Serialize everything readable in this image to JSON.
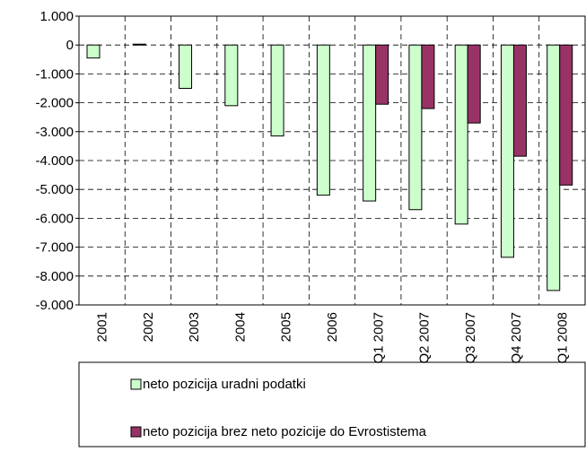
{
  "chart_data": {
    "type": "bar",
    "categories": [
      "2001",
      "2002",
      "2003",
      "2004",
      "2005",
      "2006",
      "Q1 2007",
      "Q2 2007",
      "Q3 2007",
      "Q4 2007",
      "Q1 2008"
    ],
    "series": [
      {
        "name": "neto pozicija uradni podatki",
        "color": "#ccffcc",
        "values": [
          -450,
          30,
          -1500,
          -2100,
          -3150,
          -5200,
          -5400,
          -5700,
          -6200,
          -7350,
          -8500
        ]
      },
      {
        "name": "neto pozicija brez neto pozicije do Evrostistema",
        "color": "#993366",
        "values": [
          null,
          null,
          null,
          null,
          null,
          null,
          -2050,
          -2200,
          -2700,
          -3850,
          -4850
        ]
      }
    ],
    "ylim": [
      -9000,
      1000
    ],
    "yticks": [
      {
        "value": 1000,
        "label": "1.000"
      },
      0,
      {
        "value": -1000,
        "label": "-1.000"
      },
      {
        "value": -2000,
        "label": "-2.000"
      },
      {
        "value": -3000,
        "label": "-3.000"
      },
      {
        "value": -4000,
        "label": "-4.000"
      },
      {
        "value": -5000,
        "label": "-5.000"
      },
      {
        "value": -6000,
        "label": "-6.000"
      },
      {
        "value": -7000,
        "label": "-7.000"
      },
      {
        "value": -8000,
        "label": "-8.000"
      },
      {
        "value": -9000,
        "label": "-9.000"
      }
    ],
    "grid": true
  }
}
